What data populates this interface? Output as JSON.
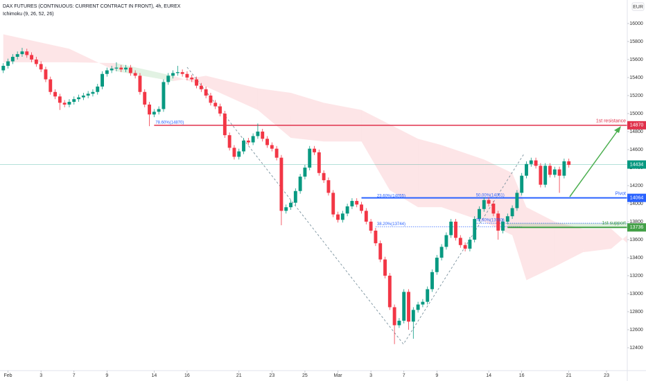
{
  "chart_data": {
    "type": "candlestick",
    "title": "DAX FUTURES (CONTINUOUS: CURRENT CONTRACT IN FRONT), 4h, EUREX",
    "subtitle": "Ichimoku (9, 26, 52, 26)",
    "currency": "EUR",
    "up_color": "#089981",
    "down_color": "#f23645",
    "ohlc": [
      [
        15480,
        15560,
        15450,
        15530
      ],
      [
        15530,
        15610,
        15500,
        15580
      ],
      [
        15580,
        15660,
        15550,
        15630
      ],
      [
        15630,
        15690,
        15600,
        15660
      ],
      [
        15660,
        15730,
        15630,
        15690
      ],
      [
        15690,
        15720,
        15620,
        15650
      ],
      [
        15650,
        15680,
        15570,
        15600
      ],
      [
        15600,
        15630,
        15520,
        15550
      ],
      [
        15550,
        15580,
        15460,
        15490
      ],
      [
        15490,
        15520,
        15350,
        15380
      ],
      [
        15380,
        15410,
        15210,
        15240
      ],
      [
        15240,
        15270,
        15160,
        15190
      ],
      [
        15190,
        15220,
        15040,
        15120
      ],
      [
        15120,
        15150,
        15070,
        15100
      ],
      [
        15100,
        15160,
        15070,
        15130
      ],
      [
        15130,
        15190,
        15100,
        15160
      ],
      [
        15160,
        15210,
        15130,
        15180
      ],
      [
        15180,
        15230,
        15150,
        15200
      ],
      [
        15200,
        15250,
        15170,
        15220
      ],
      [
        15220,
        15270,
        15190,
        15240
      ],
      [
        15240,
        15330,
        15210,
        15300
      ],
      [
        15300,
        15470,
        15270,
        15440
      ],
      [
        15440,
        15510,
        15410,
        15480
      ],
      [
        15480,
        15530,
        15450,
        15500
      ],
      [
        15500,
        15570,
        15470,
        15510
      ],
      [
        15510,
        15540,
        15460,
        15490
      ],
      [
        15490,
        15540,
        15460,
        15510
      ],
      [
        15510,
        15540,
        15420,
        15450
      ],
      [
        15450,
        15480,
        15390,
        15420
      ],
      [
        15420,
        15450,
        15210,
        15240
      ],
      [
        15240,
        15270,
        15070,
        15100
      ],
      [
        15100,
        15130,
        14860,
        14990
      ],
      [
        14990,
        15050,
        14960,
        15020
      ],
      [
        15020,
        15080,
        14990,
        15050
      ],
      [
        15050,
        15380,
        15020,
        15350
      ],
      [
        15350,
        15450,
        15320,
        15420
      ],
      [
        15420,
        15480,
        15390,
        15450
      ],
      [
        15450,
        15530,
        15420,
        15460
      ],
      [
        15460,
        15490,
        15410,
        15440
      ],
      [
        15440,
        15470,
        15370,
        15400
      ],
      [
        15400,
        15430,
        15350,
        15380
      ],
      [
        15380,
        15410,
        15280,
        15310
      ],
      [
        15310,
        15340,
        15240,
        15270
      ],
      [
        15270,
        15300,
        15170,
        15200
      ],
      [
        15200,
        15230,
        15090,
        15120
      ],
      [
        15120,
        15150,
        15050,
        15080
      ],
      [
        15080,
        15110,
        14970,
        15000
      ],
      [
        15000,
        15030,
        14730,
        14760
      ],
      [
        14760,
        14790,
        14590,
        14620
      ],
      [
        14620,
        14650,
        14490,
        14520
      ],
      [
        14520,
        14610,
        14490,
        14580
      ],
      [
        14580,
        14730,
        14550,
        14700
      ],
      [
        14700,
        14730,
        14650,
        14680
      ],
      [
        14680,
        14780,
        14650,
        14750
      ],
      [
        14750,
        14890,
        14720,
        14800
      ],
      [
        14800,
        14830,
        14690,
        14720
      ],
      [
        14720,
        14750,
        14620,
        14650
      ],
      [
        14650,
        14680,
        14580,
        14610
      ],
      [
        14610,
        14640,
        14480,
        14510
      ],
      [
        14510,
        14540,
        13760,
        13920
      ],
      [
        13920,
        13990,
        13890,
        13960
      ],
      [
        13960,
        14040,
        13930,
        14010
      ],
      [
        14010,
        14170,
        13980,
        14140
      ],
      [
        14140,
        14330,
        14110,
        14300
      ],
      [
        14300,
        14430,
        14270,
        14400
      ],
      [
        14400,
        14640,
        14370,
        14610
      ],
      [
        14610,
        14640,
        14540,
        14570
      ],
      [
        14570,
        14600,
        14310,
        14340
      ],
      [
        14340,
        14370,
        14230,
        14260
      ],
      [
        14260,
        14290,
        14090,
        14120
      ],
      [
        14120,
        14150,
        13850,
        13880
      ],
      [
        13880,
        13910,
        13790,
        13820
      ],
      [
        13820,
        13920,
        13790,
        13890
      ],
      [
        13890,
        14000,
        13860,
        13970
      ],
      [
        13970,
        14060,
        13940,
        14030
      ],
      [
        14030,
        14060,
        13960,
        13990
      ],
      [
        13990,
        14020,
        13890,
        13920
      ],
      [
        13920,
        13950,
        13770,
        13800
      ],
      [
        13800,
        13830,
        13670,
        13700
      ],
      [
        13700,
        13730,
        13530,
        13560
      ],
      [
        13560,
        13590,
        13350,
        13380
      ],
      [
        13380,
        13410,
        13170,
        13200
      ],
      [
        13200,
        13230,
        12820,
        12850
      ],
      [
        12850,
        12880,
        12440,
        12650
      ],
      [
        12650,
        12730,
        12620,
        12700
      ],
      [
        12700,
        13050,
        12670,
        13020
      ],
      [
        13020,
        13050,
        12600,
        12690
      ],
      [
        12690,
        12850,
        12500,
        12820
      ],
      [
        12820,
        12910,
        12790,
        12880
      ],
      [
        12880,
        12940,
        12850,
        12910
      ],
      [
        12910,
        13080,
        12880,
        13050
      ],
      [
        13050,
        13270,
        13020,
        13240
      ],
      [
        13240,
        13430,
        13210,
        13400
      ],
      [
        13400,
        13550,
        13370,
        13520
      ],
      [
        13520,
        13680,
        13490,
        13650
      ],
      [
        13650,
        13830,
        13620,
        13800
      ],
      [
        13800,
        13830,
        13590,
        13620
      ],
      [
        13620,
        13650,
        13510,
        13540
      ],
      [
        13540,
        13570,
        13470,
        13500
      ],
      [
        13500,
        13630,
        13470,
        13600
      ],
      [
        13600,
        13860,
        13570,
        13830
      ],
      [
        13830,
        13970,
        13800,
        13940
      ],
      [
        13940,
        14070,
        13910,
        14040
      ],
      [
        14040,
        14070,
        13970,
        14000
      ],
      [
        14000,
        14030,
        13860,
        13890
      ],
      [
        13890,
        13920,
        13600,
        13700
      ],
      [
        13700,
        13830,
        13670,
        13800
      ],
      [
        13800,
        13890,
        13770,
        13860
      ],
      [
        13860,
        13980,
        13830,
        13950
      ],
      [
        13950,
        14150,
        13920,
        14120
      ],
      [
        14120,
        14340,
        14090,
        14310
      ],
      [
        14310,
        14470,
        14280,
        14440
      ],
      [
        14440,
        14510,
        14410,
        14480
      ],
      [
        14480,
        14510,
        14390,
        14420
      ],
      [
        14420,
        14450,
        14180,
        14210
      ],
      [
        14210,
        14450,
        14180,
        14420
      ],
      [
        14420,
        14450,
        14290,
        14320
      ],
      [
        14320,
        14410,
        14290,
        14380
      ],
      [
        14380,
        14410,
        14120,
        14310
      ],
      [
        14310,
        14500,
        14280,
        14470
      ],
      [
        14470,
        14500,
        14400,
        14430
      ]
    ],
    "xlim": [
      -0.7,
      132.4
    ],
    "xticks": [
      {
        "value": 1,
        "label": "Feb"
      },
      {
        "value": 8,
        "label": "3"
      },
      {
        "value": 15,
        "label": "7"
      },
      {
        "value": 22,
        "label": "9"
      },
      {
        "value": 32,
        "label": "14"
      },
      {
        "value": 39,
        "label": "16"
      },
      {
        "value": 50,
        "label": "21"
      },
      {
        "value": 57,
        "label": "23"
      },
      {
        "value": 64,
        "label": "25"
      },
      {
        "value": 71,
        "label": "Mar"
      },
      {
        "value": 78,
        "label": "3"
      },
      {
        "value": 85,
        "label": "7"
      },
      {
        "value": 92,
        "label": "9"
      },
      {
        "value": 103,
        "label": "14"
      },
      {
        "value": 110,
        "label": "16"
      },
      {
        "value": 120,
        "label": "21"
      },
      {
        "value": 128,
        "label": "23"
      }
    ],
    "ylim": [
      12146,
      16261
    ],
    "yticks": [
      12400,
      12600,
      12800,
      13000,
      13200,
      13400,
      13600,
      13800,
      14000,
      14200,
      14400,
      14600,
      14800,
      15000,
      15200,
      15400,
      15600,
      15800,
      16000
    ],
    "grid": false,
    "cloud": {
      "x": [
        0,
        14,
        24,
        36,
        43,
        54,
        61,
        68,
        76,
        82,
        88,
        93,
        102,
        108,
        111,
        117,
        123,
        129,
        132.4
      ],
      "span_a": [
        15570,
        15570,
        15560,
        15420,
        15300,
        15040,
        14730,
        14690,
        14690,
        14150,
        13960,
        13960,
        13800,
        13650,
        13150,
        13300,
        13460,
        13500,
        13650
      ],
      "span_b": [
        15880,
        15720,
        15470,
        15360,
        15420,
        15280,
        15230,
        15120,
        15040,
        14880,
        14720,
        14650,
        14490,
        14340,
        13960,
        13800,
        13720,
        13720,
        13560
      ],
      "up_color": "rgba(76,175,80,0.16)",
      "down_color": "rgba(242,54,69,0.13)"
    },
    "zigzag": {
      "x": [
        39,
        84.9,
        110.5
      ],
      "y": [
        15515,
        12440,
        14554
      ],
      "color": "#78909c"
    },
    "levels": [
      {
        "value": 14870,
        "from": 32,
        "label": "1st resistance",
        "color": "#e0314b",
        "width": 1.5
      },
      {
        "value": 14064,
        "from": 76,
        "label": "Pivot",
        "color": "#2962ff",
        "width": 2
      },
      {
        "value": 13736,
        "upper": 13783,
        "from": 107,
        "label": "1st support",
        "color": "#43a047",
        "width": 2
      }
    ],
    "last_price": {
      "value": 14434,
      "color": "#089981"
    },
    "fib_labels": [
      {
        "label": "78.60%(14870)",
        "x": 32,
        "value": 14870
      },
      {
        "label": "23.60%(14055)",
        "x": 79,
        "value": 14055
      },
      {
        "label": "38.20%(13744)",
        "x": 79,
        "to": 110,
        "value": 13744
      },
      {
        "label": "50.00%(14061)",
        "x": 100,
        "value": 14061
      },
      {
        "label": "78.60%(13783)",
        "x": 100,
        "to": 132.4,
        "value": 13783
      }
    ]
  }
}
